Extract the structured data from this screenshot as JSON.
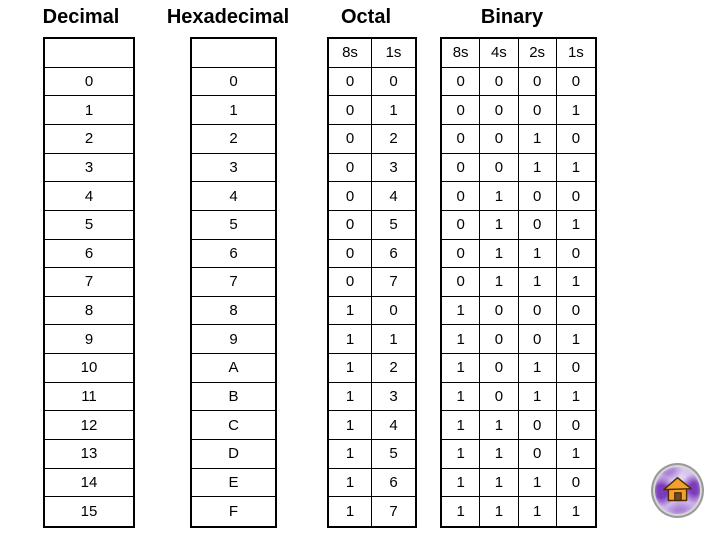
{
  "slide": {
    "background": "#ffffff",
    "text_color": "#000000"
  },
  "headers": {
    "decimal": "Decimal",
    "hexadecimal": "Hexadecimal",
    "octal": "Octal",
    "binary": "Binary"
  },
  "tables": {
    "decimal": {
      "header": [
        ""
      ],
      "rows": [
        [
          "0"
        ],
        [
          "1"
        ],
        [
          "2"
        ],
        [
          "3"
        ],
        [
          "4"
        ],
        [
          "5"
        ],
        [
          "6"
        ],
        [
          "7"
        ],
        [
          "8"
        ],
        [
          "9"
        ],
        [
          "10"
        ],
        [
          "11"
        ],
        [
          "12"
        ],
        [
          "13"
        ],
        [
          "14"
        ],
        [
          "15"
        ]
      ]
    },
    "hexadecimal": {
      "header": [
        ""
      ],
      "rows": [
        [
          "0"
        ],
        [
          "1"
        ],
        [
          "2"
        ],
        [
          "3"
        ],
        [
          "4"
        ],
        [
          "5"
        ],
        [
          "6"
        ],
        [
          "7"
        ],
        [
          "8"
        ],
        [
          "9"
        ],
        [
          "A"
        ],
        [
          "B"
        ],
        [
          "C"
        ],
        [
          "D"
        ],
        [
          "E"
        ],
        [
          "F"
        ]
      ]
    },
    "octal": {
      "header": [
        "8s",
        "1s"
      ],
      "rows": [
        [
          "0",
          "0"
        ],
        [
          "0",
          "1"
        ],
        [
          "0",
          "2"
        ],
        [
          "0",
          "3"
        ],
        [
          "0",
          "4"
        ],
        [
          "0",
          "5"
        ],
        [
          "0",
          "6"
        ],
        [
          "0",
          "7"
        ],
        [
          "1",
          "0"
        ],
        [
          "1",
          "1"
        ],
        [
          "1",
          "2"
        ],
        [
          "1",
          "3"
        ],
        [
          "1",
          "4"
        ],
        [
          "1",
          "5"
        ],
        [
          "1",
          "6"
        ],
        [
          "1",
          "7"
        ]
      ]
    },
    "binary": {
      "header": [
        "8s",
        "4s",
        "2s",
        "1s"
      ],
      "rows": [
        [
          "0",
          "0",
          "0",
          "0"
        ],
        [
          "0",
          "0",
          "0",
          "1"
        ],
        [
          "0",
          "0",
          "1",
          "0"
        ],
        [
          "0",
          "0",
          "1",
          "1"
        ],
        [
          "0",
          "1",
          "0",
          "0"
        ],
        [
          "0",
          "1",
          "0",
          "1"
        ],
        [
          "0",
          "1",
          "1",
          "0"
        ],
        [
          "0",
          "1",
          "1",
          "1"
        ],
        [
          "1",
          "0",
          "0",
          "0"
        ],
        [
          "1",
          "0",
          "0",
          "1"
        ],
        [
          "1",
          "0",
          "1",
          "0"
        ],
        [
          "1",
          "0",
          "1",
          "1"
        ],
        [
          "1",
          "1",
          "0",
          "0"
        ],
        [
          "1",
          "1",
          "0",
          "1"
        ],
        [
          "1",
          "1",
          "1",
          "0"
        ],
        [
          "1",
          "1",
          "1",
          "1"
        ]
      ]
    }
  },
  "home_button": {
    "icon": "home-icon",
    "colors": {
      "rim": "#9a9a9a",
      "face": "#cdb4ea",
      "face_light": "#f2ebfb",
      "face_mid": "#a97fd6",
      "face_dark": "#7b3cbb",
      "house_fill": "#f5a02d",
      "house_outline": "#4a2f00",
      "door_fill": "#6e4a28"
    }
  }
}
